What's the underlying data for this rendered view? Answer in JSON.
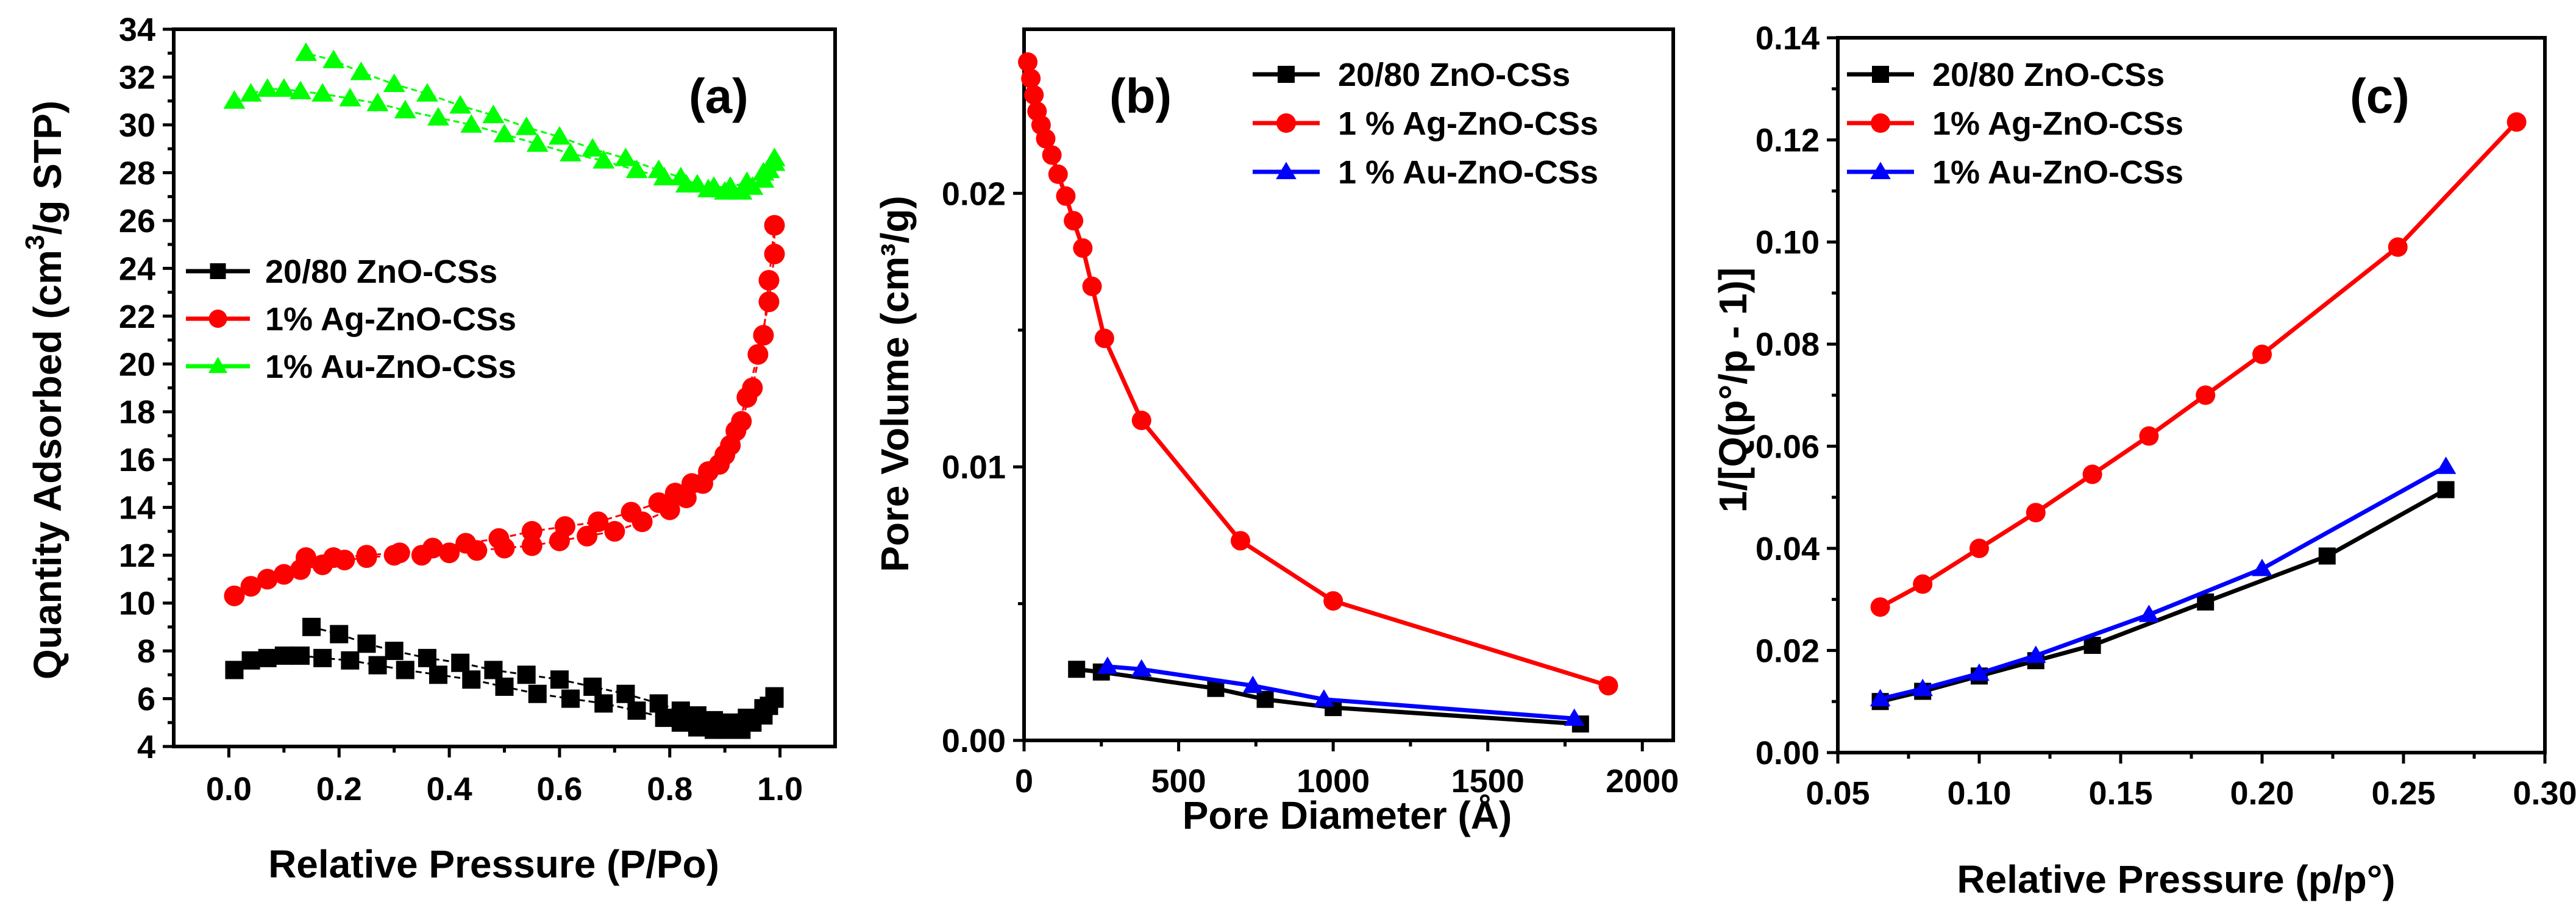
{
  "chart_data": [
    {
      "type": "scatter",
      "panel_label": "(a)",
      "title": "",
      "xlabel": "Relative Pressure (P/Po)",
      "ylabel_main": "Quantity Adsorbed (cm",
      "ylabel_sup": "3",
      "ylabel_rest": "/g STP)",
      "xlim": [
        -0.1,
        1.1
      ],
      "ylim": [
        4,
        34
      ],
      "xticks": [
        0.0,
        0.2,
        0.4,
        0.6,
        0.8,
        1.0
      ],
      "xtick_labels": [
        "0.0",
        "0.2",
        "0.4",
        "0.6",
        "0.8",
        "1.0"
      ],
      "yticks": [
        4,
        6,
        8,
        10,
        12,
        14,
        16,
        18,
        20,
        22,
        24,
        26,
        28,
        30,
        32,
        34
      ],
      "ytick_labels": [
        "4",
        "6",
        "8",
        "10",
        "12",
        "14",
        "16",
        "18",
        "20",
        "22",
        "24",
        "26",
        "28",
        "30",
        "32",
        "34"
      ],
      "legend_position": "center-left",
      "series": [
        {
          "name": "20/80 ZnO-CSs",
          "color": "#000000",
          "marker": "square",
          "x": [
            0.01,
            0.04,
            0.07,
            0.1,
            0.13,
            0.17,
            0.22,
            0.27,
            0.32,
            0.38,
            0.44,
            0.5,
            0.56,
            0.62,
            0.68,
            0.74,
            0.79,
            0.82,
            0.85,
            0.88,
            0.9,
            0.93,
            0.95,
            0.97,
            0.98,
            0.99,
            0.99,
            0.97,
            0.94,
            0.91,
            0.88,
            0.85,
            0.82,
            0.78,
            0.72,
            0.66,
            0.6,
            0.54,
            0.48,
            0.42,
            0.36,
            0.3,
            0.25,
            0.2,
            0.15
          ],
          "y": [
            7.2,
            7.6,
            7.7,
            7.8,
            7.8,
            7.7,
            7.6,
            7.4,
            7.2,
            7.0,
            6.8,
            6.5,
            6.2,
            6.0,
            5.8,
            5.5,
            5.2,
            5.0,
            4.8,
            4.7,
            4.7,
            4.7,
            5.0,
            5.3,
            5.7,
            6.0,
            6.1,
            5.6,
            5.2,
            5.0,
            5.1,
            5.3,
            5.5,
            5.8,
            6.2,
            6.5,
            6.8,
            7.0,
            7.2,
            7.5,
            7.7,
            8.0,
            8.3,
            8.7,
            9.0
          ]
        },
        {
          "name": "1% Ag-ZnO-CSs",
          "color": "#ff0000",
          "marker": "circle",
          "x": [
            0.01,
            0.04,
            0.07,
            0.1,
            0.13,
            0.17,
            0.21,
            0.25,
            0.3,
            0.35,
            0.4,
            0.45,
            0.5,
            0.55,
            0.6,
            0.65,
            0.7,
            0.75,
            0.8,
            0.83,
            0.86,
            0.89,
            0.91,
            0.93,
            0.95,
            0.97,
            0.98,
            0.99,
            0.99,
            0.98,
            0.96,
            0.94,
            0.92,
            0.9,
            0.87,
            0.84,
            0.81,
            0.78,
            0.73,
            0.67,
            0.61,
            0.55,
            0.49,
            0.43,
            0.37,
            0.31,
            0.25,
            0.19,
            0.14
          ],
          "y": [
            10.3,
            10.7,
            11.0,
            11.2,
            11.4,
            11.6,
            11.8,
            11.9,
            12.0,
            12.0,
            12.1,
            12.2,
            12.3,
            12.4,
            12.6,
            12.8,
            13.0,
            13.4,
            13.9,
            14.4,
            15.0,
            15.8,
            16.6,
            17.6,
            19.0,
            21.2,
            23.5,
            25.8,
            24.6,
            22.6,
            20.4,
            18.6,
            17.2,
            16.2,
            15.5,
            15.0,
            14.6,
            14.2,
            13.8,
            13.4,
            13.2,
            13.0,
            12.7,
            12.5,
            12.3,
            12.1,
            12.0,
            11.9,
            11.9
          ]
        },
        {
          "name": "1% Au-ZnO-CSs",
          "color": "#00ff00",
          "marker": "triangle",
          "x": [
            0.01,
            0.04,
            0.07,
            0.1,
            0.13,
            0.17,
            0.22,
            0.27,
            0.32,
            0.38,
            0.44,
            0.5,
            0.56,
            0.62,
            0.68,
            0.74,
            0.79,
            0.83,
            0.87,
            0.9,
            0.93,
            0.95,
            0.97,
            0.98,
            0.99,
            0.99,
            0.97,
            0.94,
            0.91,
            0.88,
            0.85,
            0.82,
            0.78,
            0.72,
            0.66,
            0.6,
            0.54,
            0.48,
            0.42,
            0.36,
            0.3,
            0.24,
            0.19,
            0.14
          ],
          "y": [
            31.0,
            31.3,
            31.5,
            31.5,
            31.4,
            31.3,
            31.1,
            30.9,
            30.6,
            30.3,
            30.0,
            29.6,
            29.2,
            28.8,
            28.5,
            28.1,
            27.8,
            27.5,
            27.3,
            27.2,
            27.2,
            27.4,
            27.7,
            28.1,
            28.6,
            28.4,
            28.0,
            27.6,
            27.4,
            27.4,
            27.5,
            27.8,
            28.1,
            28.6,
            29.0,
            29.5,
            29.9,
            30.4,
            30.8,
            31.3,
            31.7,
            32.2,
            32.7,
            33.0
          ]
        }
      ]
    },
    {
      "type": "line",
      "panel_label": "(b)",
      "title": "",
      "xlabel": "Pore Diameter (Å)",
      "ylabel": "Pore Volume (cm³/g)",
      "xlim": [
        0,
        2100
      ],
      "ylim": [
        0,
        0.026
      ],
      "xticks": [
        0,
        500,
        1000,
        1500,
        2000
      ],
      "xtick_labels": [
        "0",
        "500",
        "1000",
        "1500",
        "2000"
      ],
      "yticks": [
        0,
        0.01,
        0.02
      ],
      "ytick_labels": [
        "0.00",
        "0.01",
        "0.02"
      ],
      "legend_position": "top-right",
      "series": [
        {
          "name": "20/80 ZnO-CSs",
          "color": "#000000",
          "marker": "square",
          "x": [
            170,
            250,
            620,
            780,
            1000,
            1800
          ],
          "y": [
            0.0026,
            0.0025,
            0.0019,
            0.0015,
            0.0012,
            0.0006
          ]
        },
        {
          "name": "1 % Ag-ZnO-CSs",
          "color": "#ff0000",
          "marker": "circle",
          "x": [
            12,
            22,
            32,
            42,
            55,
            70,
            90,
            110,
            135,
            160,
            190,
            220,
            260,
            380,
            700,
            1000,
            1890
          ],
          "y": [
            0.0248,
            0.0242,
            0.0236,
            0.023,
            0.0225,
            0.022,
            0.0214,
            0.0207,
            0.0199,
            0.019,
            0.018,
            0.0166,
            0.0147,
            0.0117,
            0.0073,
            0.0051,
            0.002
          ]
        },
        {
          "name": "1 % Au-ZnO-CSs",
          "color": "#0000ff",
          "marker": "triangle",
          "x": [
            270,
            380,
            740,
            970,
            1780
          ],
          "y": [
            0.0027,
            0.0026,
            0.002,
            0.0015,
            0.0008
          ]
        }
      ]
    },
    {
      "type": "line",
      "panel_label": "(c)",
      "title": "",
      "xlabel": "Relative Pressure (p/p°)",
      "ylabel": "1/[Q(p°/p - 1)]",
      "xlim": [
        0.05,
        0.3
      ],
      "ylim": [
        0,
        0.14
      ],
      "xticks": [
        0.05,
        0.1,
        0.15,
        0.2,
        0.25,
        0.3
      ],
      "xtick_labels": [
        "0.05",
        "0.10",
        "0.15",
        "0.20",
        "0.25",
        "0.30"
      ],
      "yticks": [
        0,
        0.02,
        0.04,
        0.06,
        0.08,
        0.1,
        0.12,
        0.14
      ],
      "ytick_labels": [
        "0.00",
        "0.02",
        "0.04",
        "0.06",
        "0.08",
        "0.10",
        "0.12",
        "0.14"
      ],
      "legend_position": "top-left",
      "series": [
        {
          "name": "20/80 ZnO-CSs",
          "color": "#000000",
          "marker": "square",
          "x": [
            0.065,
            0.08,
            0.1,
            0.12,
            0.14,
            0.18,
            0.223,
            0.265
          ],
          "y": [
            0.01,
            0.012,
            0.015,
            0.018,
            0.021,
            0.0295,
            0.0385,
            0.0515
          ]
        },
        {
          "name": "1% Ag-ZnO-CSs",
          "color": "#ff0000",
          "marker": "circle",
          "x": [
            0.065,
            0.08,
            0.1,
            0.12,
            0.14,
            0.16,
            0.18,
            0.2,
            0.248,
            0.29
          ],
          "y": [
            0.0285,
            0.033,
            0.04,
            0.047,
            0.0545,
            0.062,
            0.07,
            0.078,
            0.099,
            0.1235
          ]
        },
        {
          "name": "1% Au-ZnO-CSs",
          "color": "#0000ff",
          "marker": "triangle",
          "x": [
            0.065,
            0.08,
            0.1,
            0.12,
            0.16,
            0.2,
            0.265
          ],
          "y": [
            0.0105,
            0.0125,
            0.0155,
            0.019,
            0.027,
            0.036,
            0.056
          ]
        }
      ]
    }
  ]
}
